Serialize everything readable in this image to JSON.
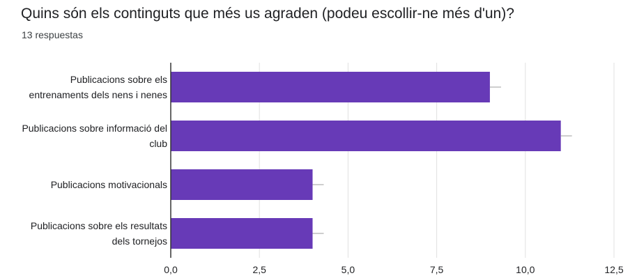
{
  "question": {
    "title": "Quins són els continguts que més us agraden (podeu escollir-ne més d'un)?",
    "responses": "13 respuestas"
  },
  "chart_data": {
    "type": "bar",
    "orientation": "horizontal",
    "categories": [
      [
        "Publicacions sobre els",
        "entrenaments dels nens i nenes"
      ],
      [
        "Publicacions sobre informació del",
        "club"
      ],
      [
        "Publicacions motivacionals"
      ],
      [
        "Publicacions sobre els resultats",
        "dels tornejos"
      ]
    ],
    "values": [
      9,
      11,
      4,
      4
    ],
    "xlim": [
      0,
      12.5
    ],
    "xticks": [
      0,
      2.5,
      5,
      7.5,
      10,
      12.5
    ],
    "xtick_labels": [
      "0,0",
      "2,5",
      "5,0",
      "7,5",
      "10,0",
      "12,5"
    ],
    "grid": true,
    "bar_color": "#673ab7",
    "axis_color": "#333333",
    "grid_color": "#e0e0e0",
    "error_color": "#9e9e9e",
    "title": "",
    "xlabel": "",
    "ylabel": ""
  }
}
